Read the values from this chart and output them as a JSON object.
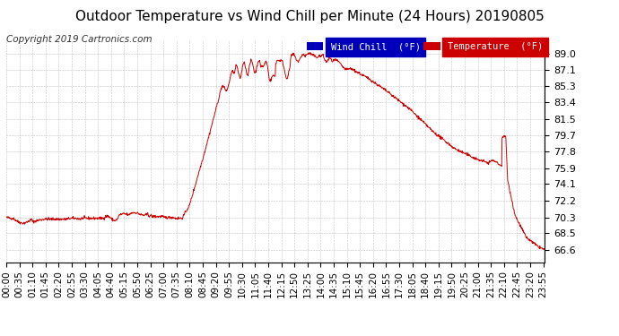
{
  "title": "Outdoor Temperature vs Wind Chill per Minute (24 Hours) 20190805",
  "copyright": "Copyright 2019 Cartronics.com",
  "legend_items": [
    {
      "label": "Wind Chill  (°F)",
      "bg": "#0000bb",
      "fg": "#ffffff"
    },
    {
      "label": "Temperature  (°F)",
      "bg": "#cc0000",
      "fg": "#ffffff"
    }
  ],
  "line_color": "#cc0000",
  "background_color": "#ffffff",
  "plot_bg_color": "#ffffff",
  "grid_color": "#bbbbbb",
  "ylim": [
    65.2,
    90.5
  ],
  "yticks": [
    66.6,
    68.5,
    70.3,
    72.2,
    74.1,
    75.9,
    77.8,
    79.7,
    81.5,
    83.4,
    85.3,
    87.1,
    89.0
  ],
  "title_fontsize": 11,
  "copyright_fontsize": 7.5,
  "tick_fontsize": 8,
  "num_points": 1440,
  "tick_interval_minutes": 35
}
